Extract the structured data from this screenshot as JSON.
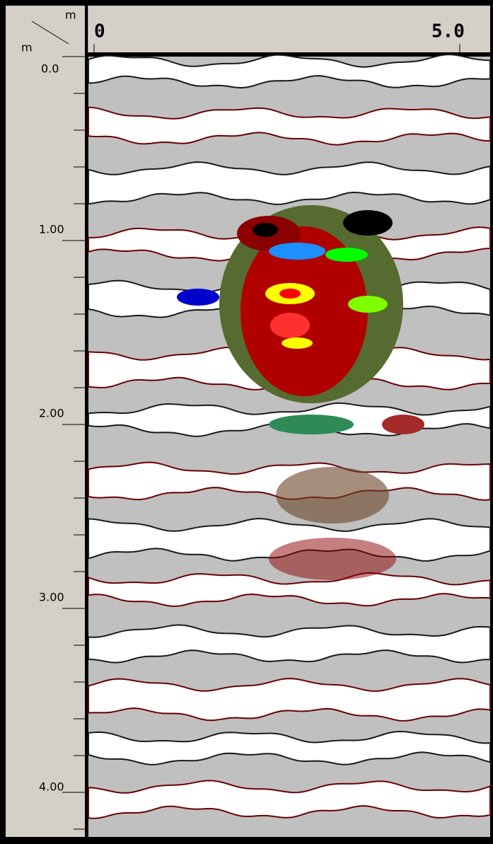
{
  "axis_units": {
    "top": "m",
    "left": "m"
  },
  "top_axis": {
    "labels": [
      "0",
      "5.0"
    ]
  },
  "depth_axis": {
    "labels": [
      "0.0",
      "1.00",
      "2.00",
      "3.00",
      "4.00"
    ]
  }
}
